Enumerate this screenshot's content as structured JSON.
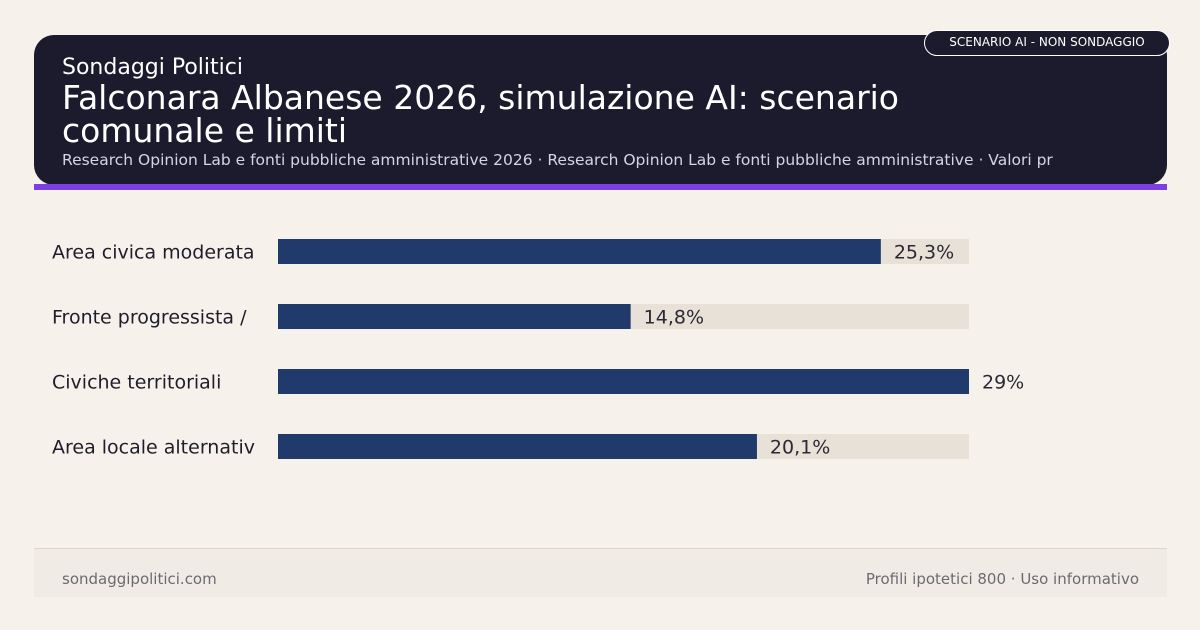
{
  "header": {
    "brand": "Sondaggi Politici",
    "title": "Falconara Albanese 2026, simulazione AI: scenario comunale e limiti",
    "subtitle": "Research Opinion Lab e fonti pubbliche amministrative 2026 · Research Opinion Lab e fonti pubbliche amministrative · Valori pr",
    "badge": "SCENARIO AI - NON SONDAGGIO"
  },
  "colors": {
    "header_bg": "#1c1b2e",
    "accent": "#7b3fe4",
    "bar": "#1f3a6b",
    "track": "#e8e1d8",
    "page_bg": "#f6f2eb"
  },
  "chart_data": {
    "type": "bar",
    "orientation": "horizontal",
    "categories": [
      "Area civica moderata",
      "Fronte progressista /",
      "Civiche territoriali",
      "Area locale alternativ"
    ],
    "values": [
      25.3,
      14.8,
      29,
      20.1
    ],
    "value_labels": [
      "25,3%",
      "14,8%",
      "29%",
      "20,1%"
    ],
    "xlim": [
      0,
      29
    ],
    "grid": false,
    "legend": "none"
  },
  "footer": {
    "left": "sondaggipolitici.com",
    "right": "Profili ipotetici 800 · Uso informativo"
  }
}
